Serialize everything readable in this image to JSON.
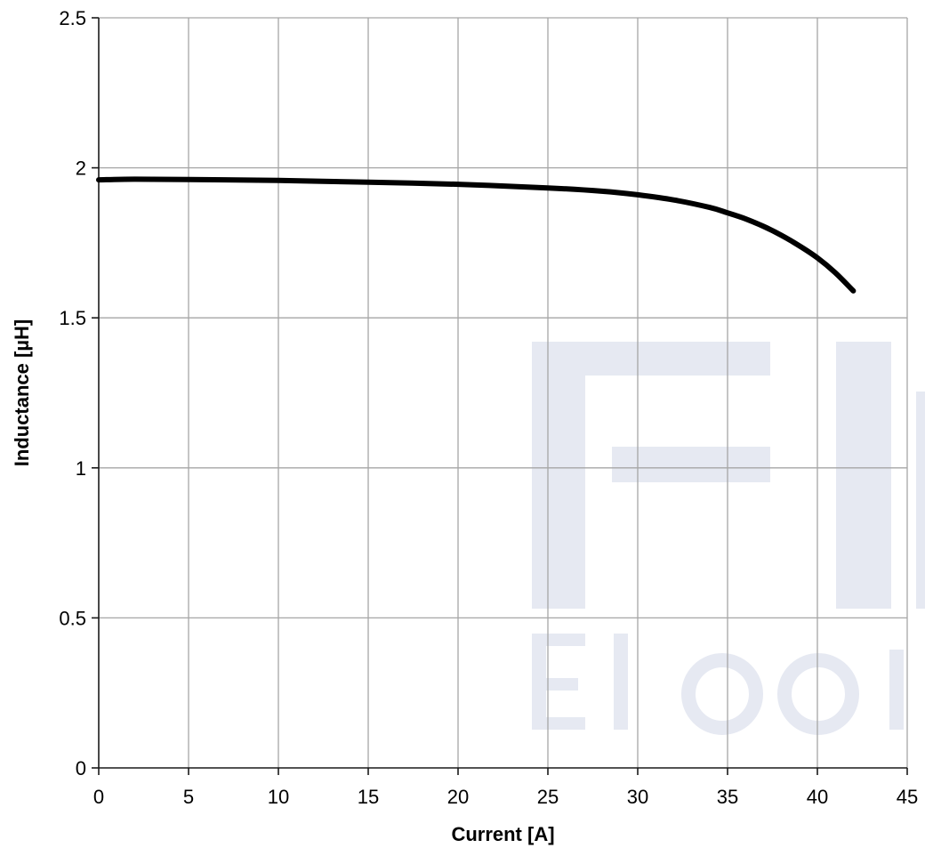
{
  "chart_data": {
    "type": "line",
    "title": "",
    "xlabel": "Current [A]",
    "ylabel": "Inductance [µH]",
    "xlim": [
      0,
      45
    ],
    "ylim": [
      0,
      2.5
    ],
    "xticks": [
      0,
      5,
      10,
      15,
      20,
      25,
      30,
      35,
      40,
      45
    ],
    "xtick_labels": [
      "0",
      "5",
      "10",
      "15",
      "20",
      "25",
      "30",
      "35",
      "40",
      "45"
    ],
    "yticks": [
      0,
      0.5,
      1,
      1.5,
      2,
      2.5
    ],
    "ytick_labels": [
      "0",
      "0.5",
      "1",
      "1.5",
      "2",
      "2.5"
    ],
    "grid": true,
    "legend": "none",
    "series": [
      {
        "color": "#000000",
        "x": [
          0,
          2,
          5,
          10,
          15,
          20,
          25,
          28,
          30,
          32,
          34,
          35,
          36,
          37,
          38,
          39,
          40,
          41,
          42
        ],
        "y": [
          1.96,
          1.962,
          1.961,
          1.958,
          1.952,
          1.945,
          1.933,
          1.922,
          1.91,
          1.893,
          1.868,
          1.85,
          1.83,
          1.805,
          1.775,
          1.74,
          1.7,
          1.65,
          1.59
        ]
      }
    ]
  },
  "watermark": {
    "description_icon": "brand-logo-watermark",
    "color": "#e6e9f2"
  }
}
